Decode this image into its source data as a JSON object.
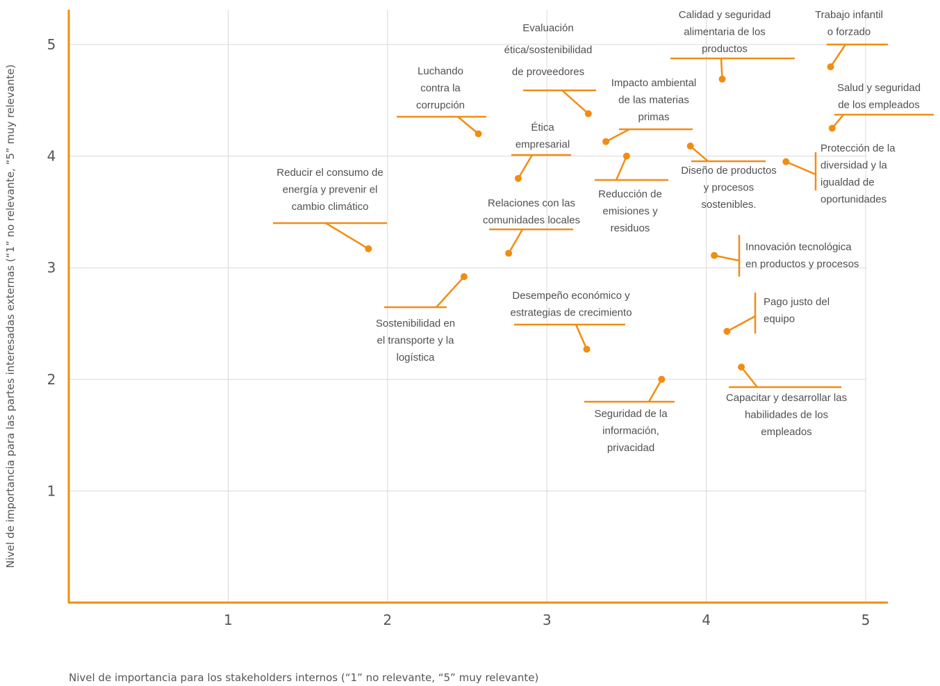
{
  "chart_data": {
    "type": "scatter",
    "title": "",
    "xlabel": "Nivel de importancia para los stakeholders internos (“1” no relevante, “5” muy relevante)",
    "ylabel": "Nivel de importancia para las partes interesadas externas (“1” no relevante, “5” muy relevante)",
    "xlim": [
      0,
      5.15
    ],
    "ylim": [
      0,
      5.3
    ],
    "xticks": [
      "1",
      "2",
      "3",
      "4",
      "5"
    ],
    "yticks": [
      "1",
      "2",
      "3",
      "4",
      "5"
    ],
    "grid": true,
    "accent_color": "#f28c13",
    "points": [
      {
        "label": [
          "Reducir el consumo de",
          "energía y prevenir el",
          "cambio climático"
        ],
        "x": 1.88,
        "y": 3.17
      },
      {
        "label": [
          "Luchando",
          "contra la",
          "corrupción"
        ],
        "x": 2.57,
        "y": 4.2
      },
      {
        "label": [
          "Evaluación",
          "ética/sostenibilidad",
          "de proveedores"
        ],
        "x": 3.26,
        "y": 4.38
      },
      {
        "label": [
          "Calidad y seguridad",
          "alimentaria de los",
          "productos"
        ],
        "x": 4.1,
        "y": 4.69
      },
      {
        "label": [
          "Trabajo infantil",
          "o forzado"
        ],
        "x": 4.78,
        "y": 4.8
      },
      {
        "label": [
          "Salud y seguridad",
          "de los empleados"
        ],
        "x": 4.79,
        "y": 4.25
      },
      {
        "label": [
          "Impacto ambiental",
          "de las materias",
          "primas"
        ],
        "x": 3.37,
        "y": 4.13
      },
      {
        "label": [
          "Ética",
          "empresarial"
        ],
        "x": 2.82,
        "y": 3.8
      },
      {
        "label": [
          "Reducción de",
          "emisiones y",
          "residuos"
        ],
        "x": 3.5,
        "y": 4.0
      },
      {
        "label": [
          "Diseño de productos",
          "y procesos",
          "sostenibles."
        ],
        "x": 3.9,
        "y": 4.09
      },
      {
        "label": [
          "Protección de la",
          "diversidad y la",
          "igualdad de",
          "oportunidades"
        ],
        "x": 4.5,
        "y": 3.95
      },
      {
        "label": [
          "Relaciones con las",
          "comunidades locales"
        ],
        "x": 2.76,
        "y": 3.13
      },
      {
        "label": [
          "Innovación tecnológica",
          "en productos y procesos"
        ],
        "x": 4.05,
        "y": 3.11
      },
      {
        "label": [
          "Sostenibilidad en",
          "el transporte y la",
          "logística"
        ],
        "x": 2.48,
        "y": 2.92
      },
      {
        "label": [
          "Desempeño económico y",
          "estrategias de crecimiento"
        ],
        "x": 3.25,
        "y": 2.27
      },
      {
        "label": [
          "Pago justo del",
          "equipo"
        ],
        "x": 4.13,
        "y": 2.43
      },
      {
        "label": [
          "Capacitar y desarrollar las",
          "habilidades de los",
          "empleados"
        ],
        "x": 4.22,
        "y": 2.11
      },
      {
        "label": [
          "Seguridad de la",
          "información,",
          "privacidad"
        ],
        "x": 3.72,
        "y": 2.0
      }
    ]
  }
}
